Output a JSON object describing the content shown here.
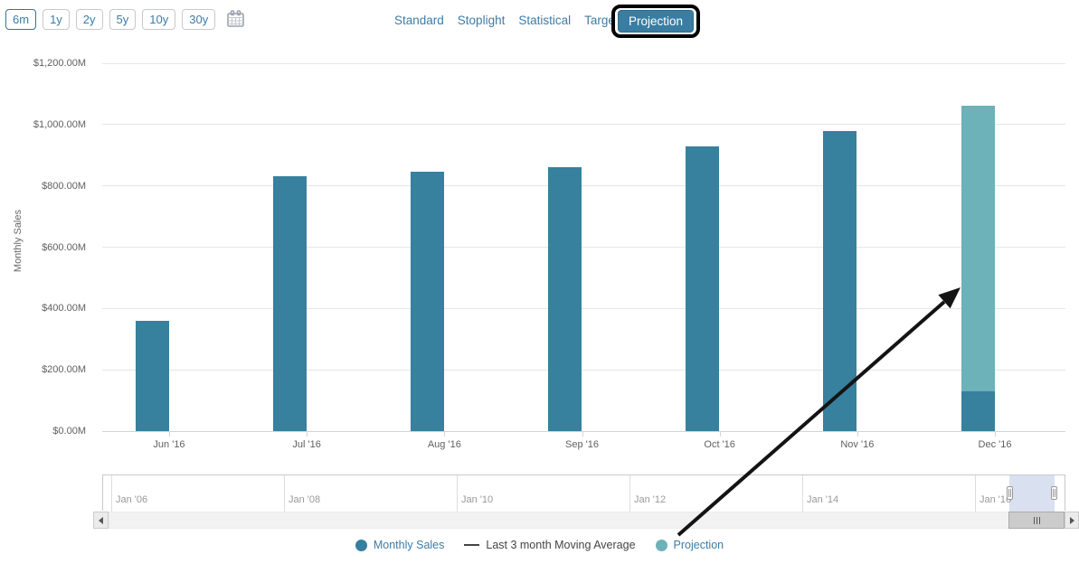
{
  "toolbar": {
    "range_buttons": [
      {
        "label": "6m",
        "selected": true
      },
      {
        "label": "1y",
        "selected": false
      },
      {
        "label": "2y",
        "selected": false
      },
      {
        "label": "5y",
        "selected": false
      },
      {
        "label": "10y",
        "selected": false
      },
      {
        "label": "30y",
        "selected": false
      }
    ],
    "view_tabs": [
      "Standard",
      "Stoplight",
      "Statistical",
      "Target"
    ],
    "active_view_tab": "Projection"
  },
  "colors": {
    "bar": "#37809e",
    "projection": "#6db1b9",
    "moving_average": "#444444",
    "accent_text": "#3d7ca6",
    "grid": "#e6e6e6",
    "axis_line": "#ccd6e0",
    "annotation": "#141414"
  },
  "chart_data": {
    "type": "bar",
    "title": "",
    "xlabel": "",
    "ylabel": "Monthly Sales",
    "ylim": [
      0,
      1200
    ],
    "yticks": [
      0,
      200,
      400,
      600,
      800,
      1000,
      1200
    ],
    "ytick_labels": [
      "$0.00M",
      "$200.00M",
      "$400.00M",
      "$600.00M",
      "$800.00M",
      "$1,000.00M",
      "$1,200.00M"
    ],
    "categories": [
      "Jun '16",
      "Jul '16",
      "Aug '16",
      "Sep '16",
      "Oct '16",
      "Nov '16",
      "Dec '16"
    ],
    "series": [
      {
        "name": "Monthly Sales",
        "type": "column",
        "color": "#37809e",
        "values": [
          360,
          830,
          845,
          860,
          930,
          980,
          130
        ]
      },
      {
        "name": "Last 3 month Moving Average",
        "type": "line",
        "color": "#444444",
        "values": []
      },
      {
        "name": "Projection",
        "type": "column",
        "color": "#6db1b9",
        "stacked_on": "Monthly Sales",
        "values": [
          null,
          null,
          null,
          null,
          null,
          null,
          930
        ]
      }
    ],
    "grid": true,
    "legend_position": "bottom"
  },
  "navigator": {
    "tick_labels": [
      "Jan '06",
      "Jan '08",
      "Jan '10",
      "Jan '12",
      "Jan '14",
      "Jan '16"
    ],
    "selected_range_label": "6m"
  },
  "legend": {
    "items": [
      {
        "label": "Monthly Sales",
        "marker": "circle",
        "color": "#37809e",
        "text_color": "#3d7ca6"
      },
      {
        "label": "Last 3 month Moving Average",
        "marker": "line",
        "color": "#444444",
        "text_color": "#444444"
      },
      {
        "label": "Projection",
        "marker": "circle",
        "color": "#6db1b9",
        "text_color": "#3d7ca6"
      }
    ]
  }
}
